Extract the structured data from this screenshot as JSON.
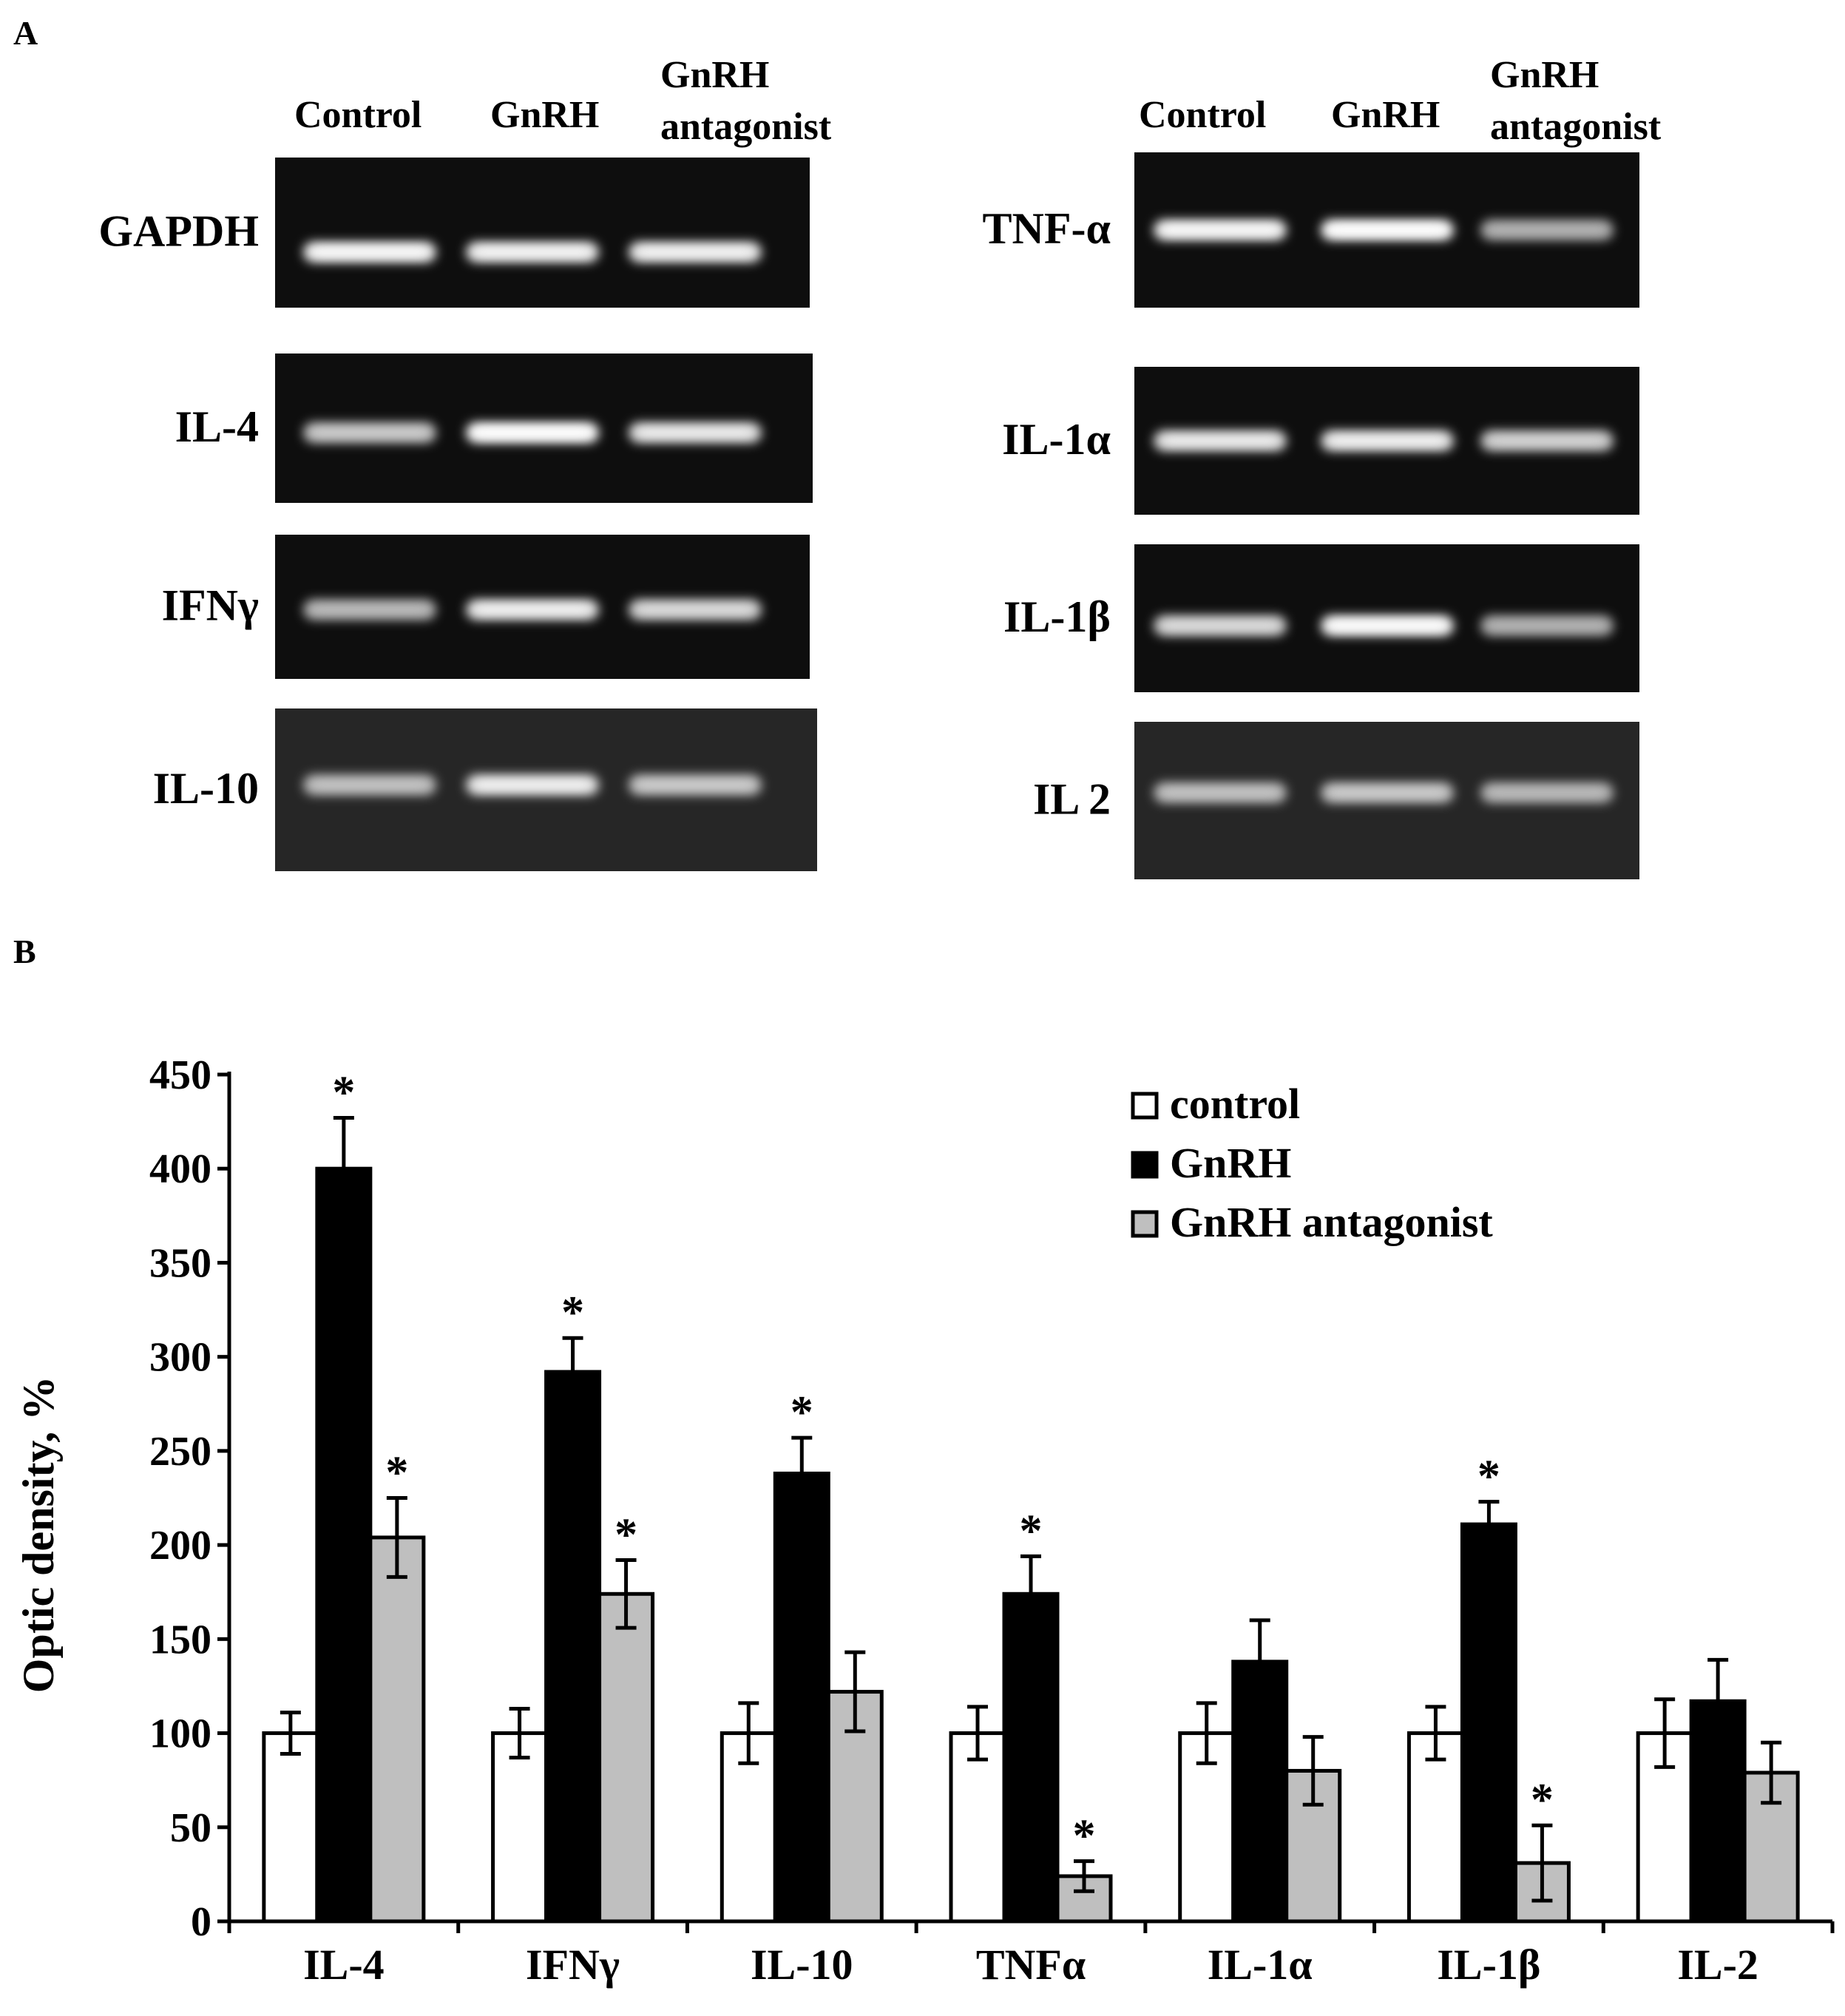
{
  "panel_a": {
    "label": "A",
    "left_headers": [
      "Control",
      "GnRH",
      "GnRH",
      "antagonist"
    ],
    "right_headers": [
      "Control",
      "GnRH",
      "GnRH",
      "antagonist"
    ],
    "left_gels": [
      {
        "name": "GAPDH",
        "bands": [
          0.85,
          0.8,
          0.78
        ]
      },
      {
        "name": "IL-4",
        "bands": [
          0.5,
          0.95,
          0.7
        ]
      },
      {
        "name": "IFNγ",
        "bands": [
          0.4,
          0.75,
          0.6
        ]
      },
      {
        "name": "IL-10",
        "bands": [
          0.45,
          0.75,
          0.5
        ]
      }
    ],
    "right_gels": [
      {
        "name": "TNF-α",
        "bands": [
          0.85,
          0.95,
          0.35
        ]
      },
      {
        "name": "IL-1α",
        "bands": [
          0.7,
          0.75,
          0.55
        ]
      },
      {
        "name": "IL-1β",
        "bands": [
          0.6,
          0.9,
          0.35
        ]
      },
      {
        "name": "IL 2",
        "bands": [
          0.45,
          0.5,
          0.4
        ]
      }
    ]
  },
  "panel_b": {
    "label": "B"
  },
  "colors": {
    "control": "#ffffff",
    "gnrh": "#000000",
    "antagonist": "#bfbfbf",
    "gel_bg": "#0e0e0e"
  },
  "chart_data": {
    "type": "bar",
    "title": "",
    "xlabel": "",
    "ylabel": "Optic density, %",
    "ylim": [
      0,
      450
    ],
    "yticks": [
      0,
      50,
      100,
      150,
      200,
      250,
      300,
      350,
      400,
      450
    ],
    "categories": [
      "IL-4",
      "IFNγ",
      "IL-10",
      "TNFα",
      "IL-1α",
      "IL-1β",
      "IL-2"
    ],
    "series": [
      {
        "name": "control",
        "values": [
          100,
          100,
          100,
          100,
          100,
          100,
          100
        ],
        "errors": [
          11,
          13,
          16,
          14,
          16,
          14,
          18
        ],
        "significant": [
          false,
          false,
          false,
          false,
          false,
          false,
          false
        ]
      },
      {
        "name": "GnRH",
        "values": [
          400,
          292,
          238,
          174,
          138,
          211,
          117
        ],
        "errors": [
          27,
          18,
          19,
          20,
          22,
          12,
          22
        ],
        "significant": [
          true,
          true,
          true,
          true,
          false,
          true,
          false
        ]
      },
      {
        "name": "GnRH antagonist",
        "values": [
          204,
          174,
          122,
          24,
          80,
          31,
          79
        ],
        "errors": [
          21,
          18,
          21,
          8,
          18,
          20,
          16
        ],
        "significant": [
          true,
          true,
          false,
          true,
          false,
          true,
          false
        ]
      }
    ],
    "significance_marker": "*",
    "legend_position": "top-right"
  }
}
